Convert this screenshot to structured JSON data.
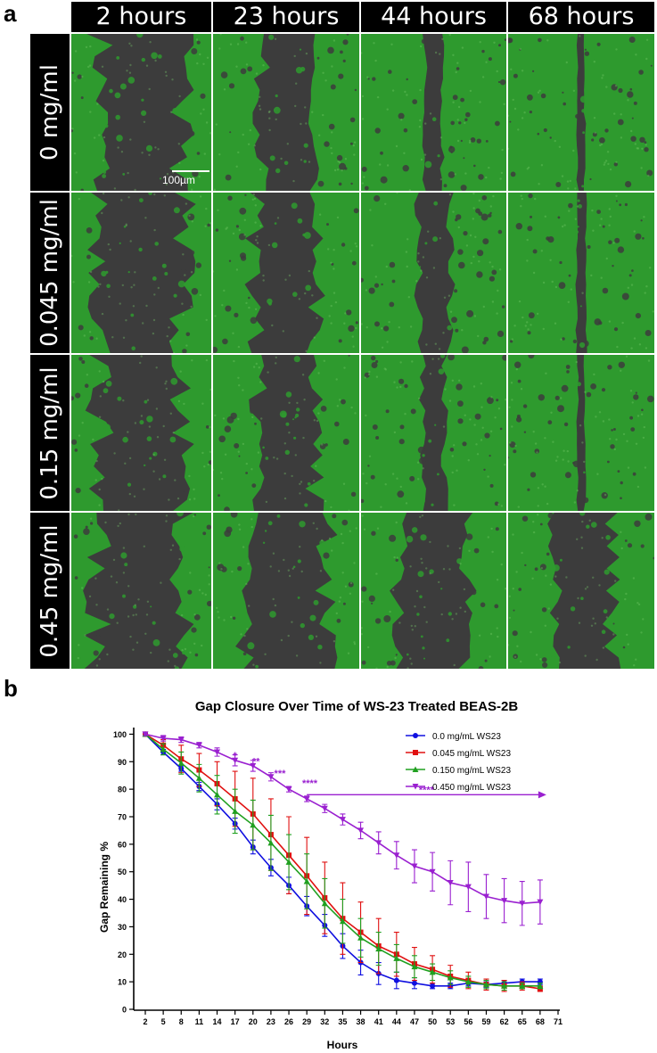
{
  "panel_a": {
    "label": "a",
    "columns": [
      "2 hours",
      "23 hours",
      "44 hours",
      "68 hours"
    ],
    "rows": [
      "0 mg/ml",
      "0.045 mg/ml",
      "0.15 mg/ml",
      "0.45 mg/ml"
    ],
    "scale_bar": "100µm",
    "colors": {
      "cells": "#2e9a2e",
      "gap": "#3c3c3c"
    }
  },
  "panel_b": {
    "label": "b"
  },
  "chart_data": {
    "type": "line",
    "title": "Gap Closure Over Time of WS-23 Treated BEAS-2B",
    "xlabel": "Hours",
    "ylabel": "Gap Remaining %",
    "xlim": [
      2,
      71
    ],
    "ylim": [
      0,
      105
    ],
    "xticks": [
      2,
      5,
      8,
      11,
      14,
      17,
      20,
      23,
      26,
      29,
      32,
      35,
      38,
      41,
      44,
      47,
      50,
      53,
      56,
      59,
      62,
      65,
      68,
      71
    ],
    "yticks": [
      0,
      10,
      20,
      30,
      40,
      50,
      60,
      70,
      80,
      90,
      100
    ],
    "x": [
      2,
      5,
      8,
      11,
      14,
      17,
      20,
      23,
      26,
      29,
      32,
      35,
      38,
      41,
      44,
      47,
      50,
      53,
      56,
      59,
      62,
      65,
      68
    ],
    "legend_position": "top-right",
    "series": [
      {
        "name": "0.0 mg/mL WS23",
        "color": "#1010e0",
        "marker": "circle",
        "values": [
          100,
          93.5,
          87.5,
          81,
          74.5,
          67.5,
          59,
          51.5,
          45,
          37.5,
          30.5,
          23,
          17,
          13,
          10.5,
          9.5,
          8.5,
          8.5,
          9.5,
          9,
          9.5,
          10,
          10
        ],
        "errors": [
          0.5,
          1,
          1,
          1.5,
          2,
          2,
          2.5,
          3,
          3,
          3.5,
          4,
          4.5,
          4.5,
          4,
          3,
          2,
          1,
          1,
          1,
          1,
          1,
          1,
          1
        ]
      },
      {
        "name": "0.045 mg/mL WS23",
        "color": "#e01010",
        "marker": "square",
        "values": [
          100,
          96,
          91,
          87,
          82,
          76.5,
          71,
          63.5,
          56,
          48.5,
          40.5,
          33,
          28,
          23,
          20,
          16.5,
          14.5,
          12,
          10.5,
          9,
          8.5,
          8.5,
          7.5
        ],
        "errors": [
          0.5,
          2,
          5,
          6,
          8,
          10,
          13,
          13,
          14,
          14,
          13,
          13,
          11,
          10,
          8,
          6,
          5,
          4,
          3,
          2,
          2,
          1.5,
          1
        ]
      },
      {
        "name": "0.150 mg/mL WS23",
        "color": "#20a020",
        "marker": "triangle-up",
        "values": [
          100,
          94.5,
          89.5,
          84,
          78,
          72,
          67,
          60.5,
          53.5,
          46.5,
          38.5,
          32,
          26,
          22,
          18.5,
          15.5,
          13.5,
          11.5,
          10,
          9,
          8.5,
          8.5,
          8.5
        ],
        "errors": [
          0.5,
          2,
          4,
          5,
          7,
          8,
          9,
          10,
          10,
          10,
          9,
          8,
          7,
          6,
          5,
          4,
          3,
          2.5,
          2,
          1.5,
          1.5,
          1,
          1
        ]
      },
      {
        "name": "0.450 mg/mL WS23",
        "color": "#9a20d0",
        "marker": "triangle-down",
        "values": [
          100,
          98.5,
          98,
          96,
          93.5,
          90.5,
          88.5,
          84.5,
          80,
          76.5,
          73,
          69,
          65,
          60.5,
          56,
          52,
          50,
          46,
          44.5,
          41,
          39.5,
          38.5,
          39
        ],
        "errors": [
          0.5,
          1,
          1,
          1,
          1.5,
          2,
          2,
          1.5,
          1,
          1,
          1.5,
          2,
          3,
          4,
          5,
          6,
          7,
          8,
          9,
          8,
          8,
          8,
          8
        ]
      }
    ],
    "annotations": [
      {
        "text": "*",
        "x": 17,
        "y": 92
      },
      {
        "text": "**",
        "x": 20.5,
        "y": 90
      },
      {
        "text": "***",
        "x": 24.5,
        "y": 85.5
      },
      {
        "text": "****",
        "x": 29.5,
        "y": 82
      },
      {
        "text": "****",
        "x": 49,
        "y": 79.5
      }
    ],
    "arrow": {
      "x_start": 29,
      "x_end": 68,
      "y": 78,
      "color": "#9a20d0"
    }
  }
}
